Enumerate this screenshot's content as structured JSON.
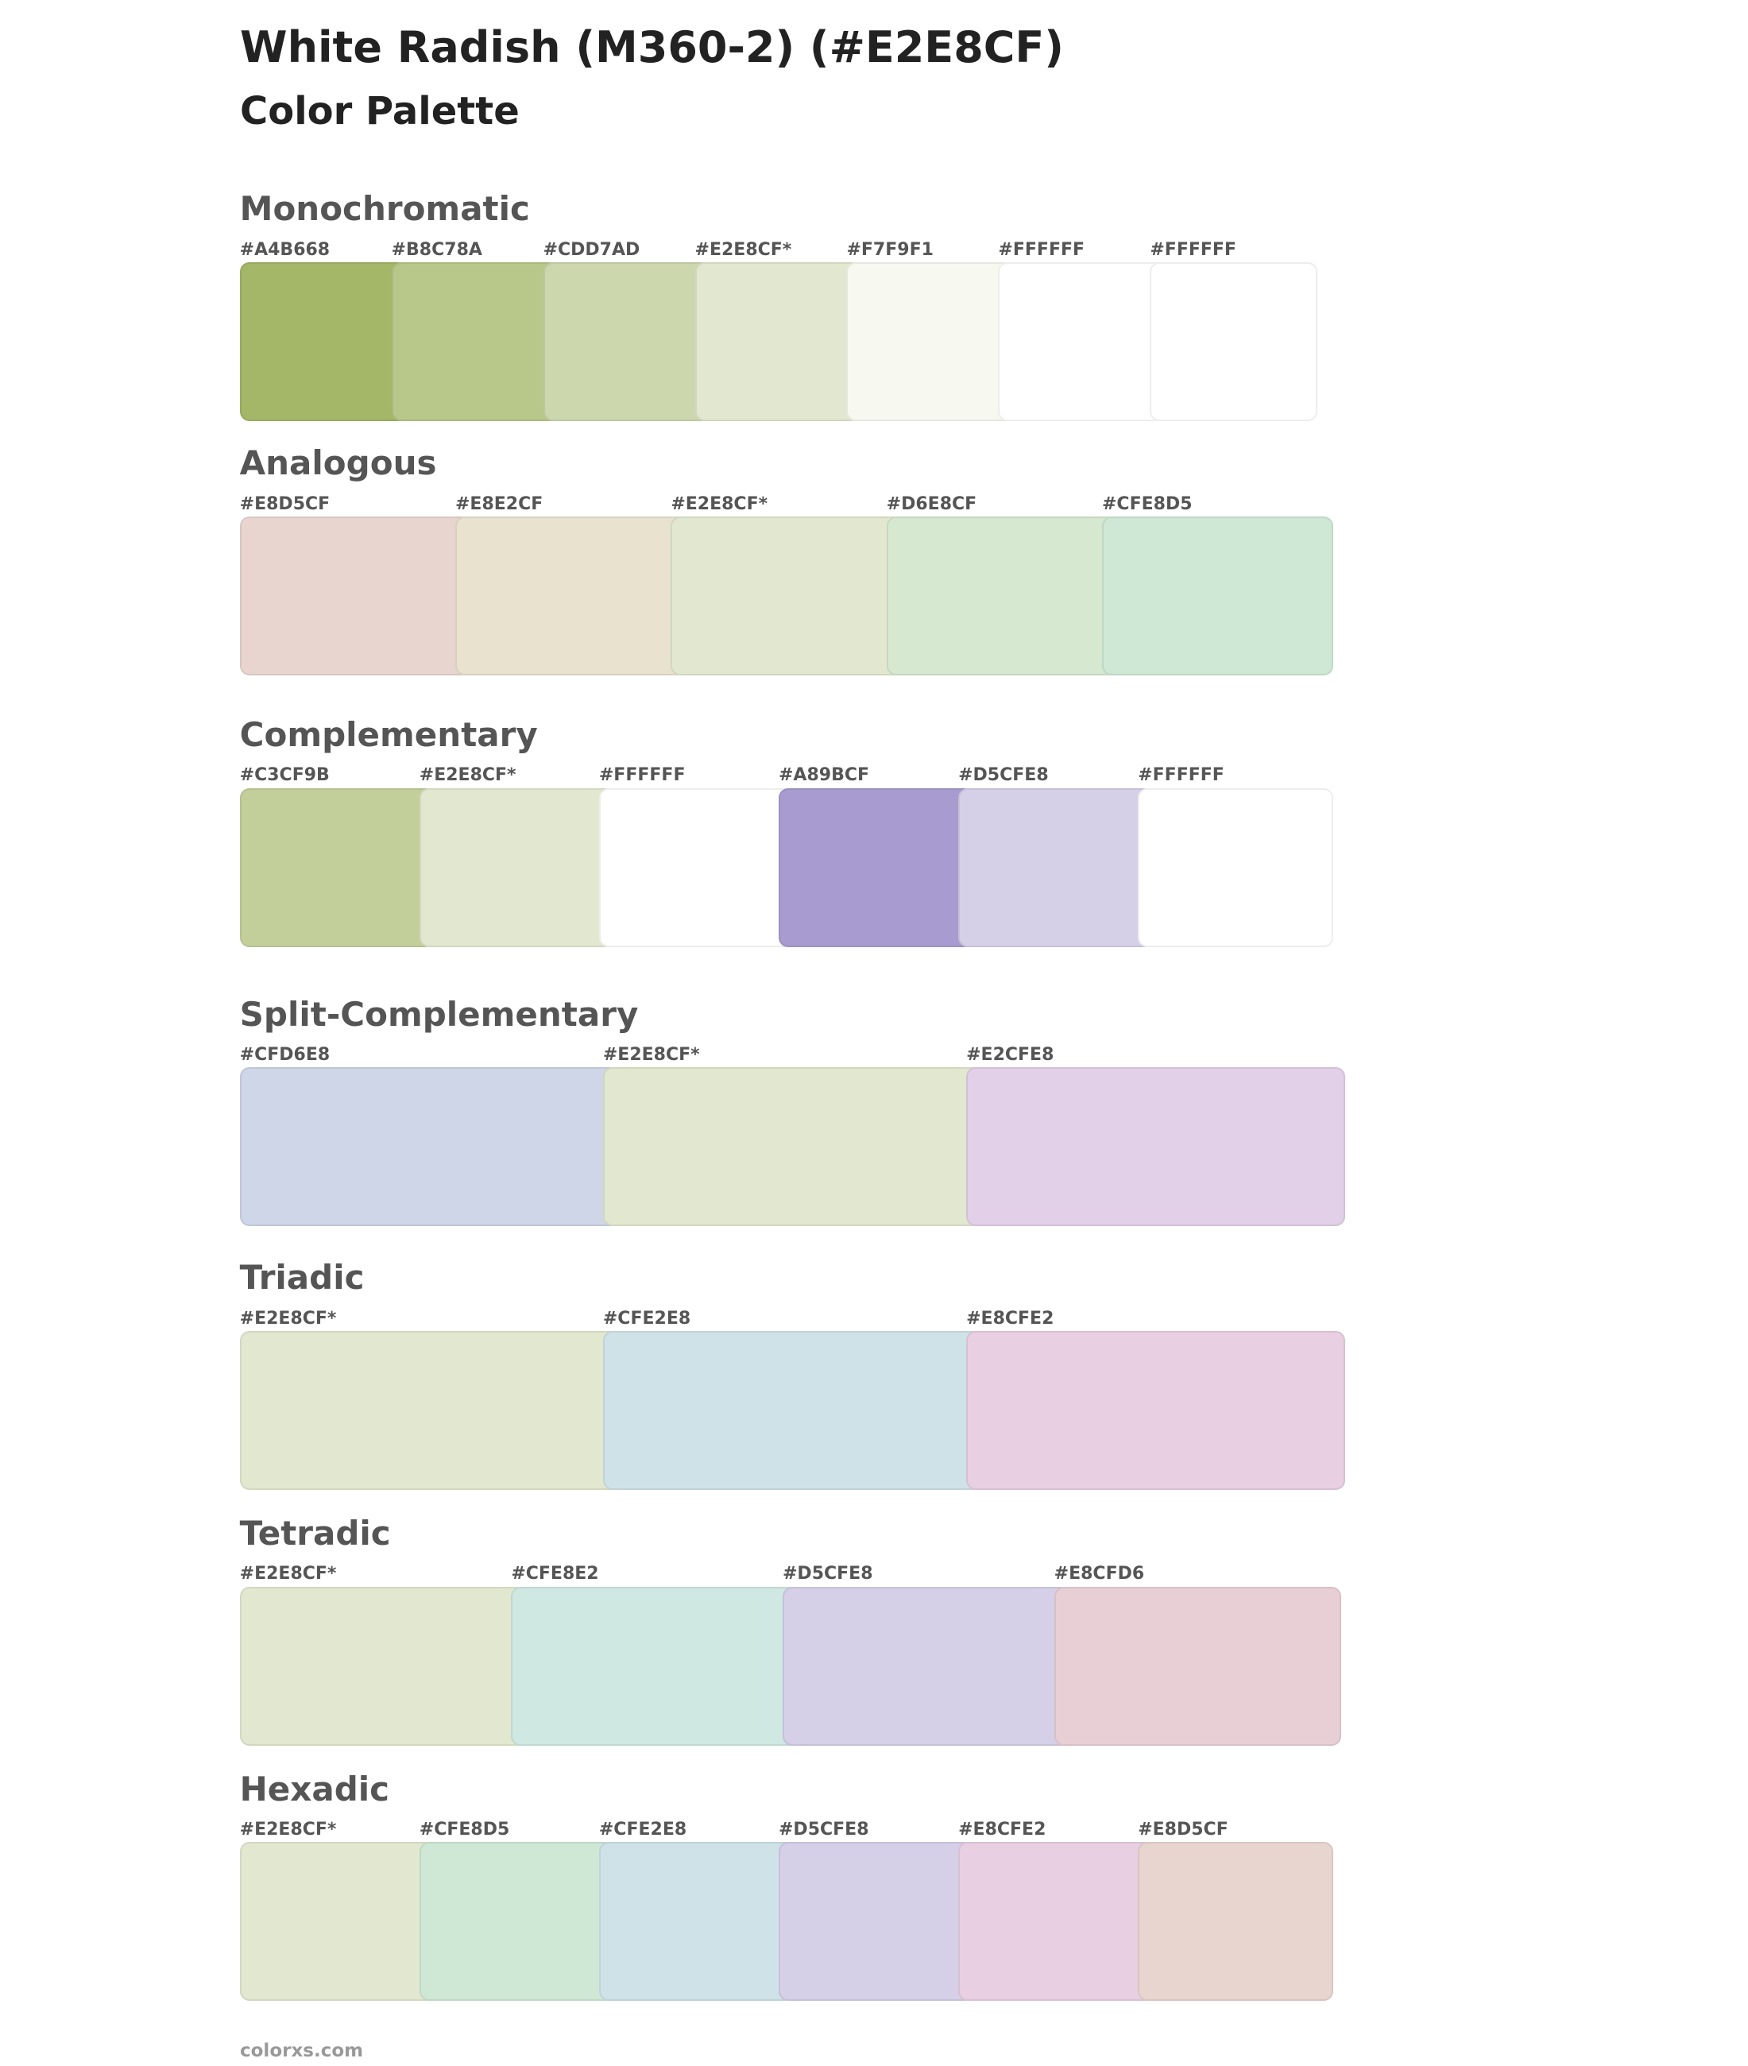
{
  "header": {
    "title": "White Radish (M360-2) (#E2E8CF)",
    "subtitle": "Color Palette"
  },
  "sections": [
    {
      "title": "Monochromatic",
      "swatches": [
        "#A4B668",
        "#B8C78A",
        "#CDD7AD",
        "#E2E8CF*",
        "#F7F9F1",
        "#FFFFFF",
        "#FFFFFF"
      ]
    },
    {
      "title": "Analogous",
      "swatches": [
        "#E8D5CF",
        "#E8E2CF",
        "#E2E8CF*",
        "#D6E8CF",
        "#CFE8D5"
      ]
    },
    {
      "title": "Complementary",
      "swatches": [
        "#C3CF9B",
        "#E2E8CF*",
        "#FFFFFF",
        "#A89BCF",
        "#D5CFE8",
        "#FFFFFF"
      ]
    },
    {
      "title": "Split-Complementary",
      "swatches": [
        "#CFD6E8",
        "#E2E8CF*",
        "#E2CFE8"
      ]
    },
    {
      "title": "Triadic",
      "swatches": [
        "#E2E8CF*",
        "#CFE2E8",
        "#E8CFE2"
      ]
    },
    {
      "title": "Tetradic",
      "swatches": [
        "#E2E8CF*",
        "#CFE8E2",
        "#D5CFE8",
        "#E8CFD6"
      ]
    },
    {
      "title": "Hexadic",
      "swatches": [
        "#E2E8CF*",
        "#CFE8D5",
        "#CFE2E8",
        "#D5CFE8",
        "#E8CFE2",
        "#E8D5CF"
      ]
    }
  ],
  "footer": "colorxs.com"
}
